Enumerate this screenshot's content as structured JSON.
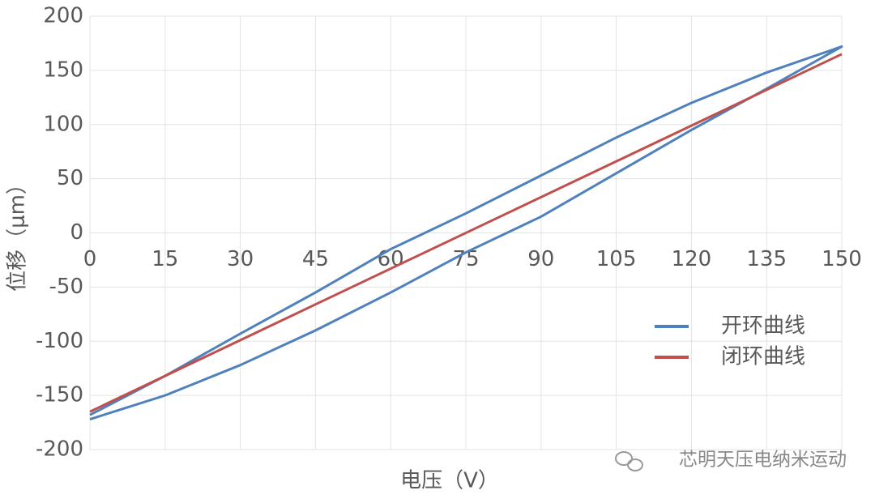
{
  "chart_data": {
    "type": "line",
    "xlabel": "电压（V）",
    "ylabel": "位移（μm）",
    "xlim": [
      0,
      150
    ],
    "ylim": [
      -200,
      200
    ],
    "xticks": [
      0,
      15,
      30,
      45,
      60,
      75,
      90,
      105,
      120,
      135,
      150
    ],
    "yticks": [
      -200,
      -150,
      -100,
      -50,
      0,
      50,
      100,
      150,
      200
    ],
    "grid": true,
    "legend": "right",
    "series": [
      {
        "name": "开环曲线",
        "color": "#4f81bd",
        "x": [
          0,
          15,
          30,
          45,
          60,
          75,
          90,
          105,
          120,
          135,
          150,
          135,
          120,
          105,
          90,
          75,
          60,
          45,
          30,
          15,
          0
        ],
        "values": [
          -172,
          -150,
          -122,
          -90,
          -55,
          -18,
          15,
          55,
          95,
          133,
          172,
          148,
          120,
          88,
          53,
          18,
          -15,
          -55,
          -93,
          -132,
          -168
        ]
      },
      {
        "name": "闭环曲线",
        "color": "#c0504d",
        "x": [
          0,
          150
        ],
        "values": [
          -165,
          165
        ]
      }
    ],
    "watermark": "芯明天压电纳米运动"
  }
}
